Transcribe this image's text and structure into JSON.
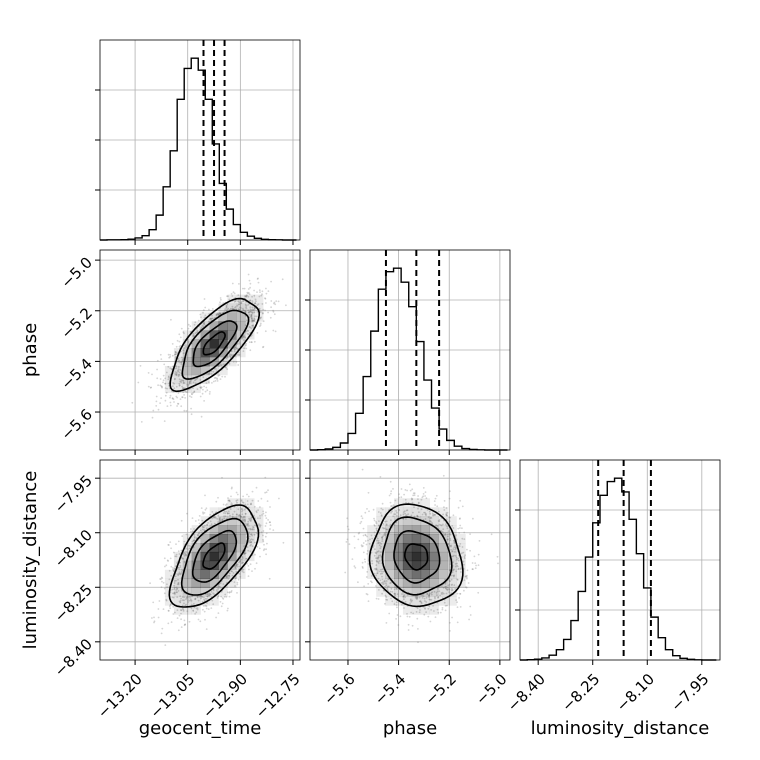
{
  "chart_data": {
    "type": "corner",
    "parameters": [
      "geocent_time",
      "phase",
      "luminosity_distance"
    ],
    "axis_labels": {
      "geocent_time": "geocent_time",
      "phase": "phase",
      "luminosity_distance": "luminosity_distance"
    },
    "ranges": {
      "geocent_time": [
        -13.3,
        -12.73
      ],
      "phase": [
        -5.75,
        -4.96
      ],
      "luminosity_distance": [
        -8.45,
        -7.9
      ]
    },
    "ticks": {
      "geocent_time": [
        -13.2,
        -13.05,
        -12.9,
        -12.75
      ],
      "phase": [
        -5.6,
        -5.4,
        -5.2,
        -5.0
      ],
      "luminosity_distance": [
        -8.4,
        -8.25,
        -8.1,
        -7.95
      ]
    },
    "tick_labels": {
      "geocent_time": [
        "−13.20",
        "−13.05",
        "−12.90",
        "−12.75"
      ],
      "phase": [
        "−5.6",
        "−5.4",
        "−5.2",
        "−5.0"
      ],
      "luminosity_distance": [
        "−8.40",
        "−8.25",
        "−8.10",
        "−7.95"
      ]
    },
    "quantiles": {
      "geocent_time": [
        -13.005,
        -12.975,
        -12.945
      ],
      "phase": [
        -5.45,
        -5.33,
        -5.24
      ],
      "luminosity_distance": [
        -8.235,
        -8.165,
        -8.09
      ]
    },
    "histograms": {
      "geocent_time": {
        "bin_edges": [
          -13.3,
          -13.28,
          -13.26,
          -13.24,
          -13.22,
          -13.2,
          -13.18,
          -13.16,
          -13.14,
          -13.12,
          -13.1,
          -13.08,
          -13.06,
          -13.04,
          -13.02,
          -13.0,
          -12.98,
          -12.96,
          -12.94,
          -12.92,
          -12.9,
          -12.88,
          -12.86,
          -12.84,
          -12.82,
          -12.8,
          -12.78,
          -12.76,
          -12.74
        ],
        "counts": [
          0,
          1,
          1,
          2,
          5,
          12,
          25,
          60,
          145,
          310,
          520,
          820,
          1000,
          1060,
          990,
          820,
          560,
          330,
          180,
          90,
          45,
          22,
          10,
          4,
          2,
          1,
          0,
          0
        ]
      },
      "phase": {
        "bin_edges": [
          -5.75,
          -5.72,
          -5.69,
          -5.66,
          -5.63,
          -5.6,
          -5.57,
          -5.54,
          -5.51,
          -5.48,
          -5.45,
          -5.42,
          -5.39,
          -5.36,
          -5.33,
          -5.3,
          -5.27,
          -5.24,
          -5.21,
          -5.18,
          -5.15,
          -5.12,
          -5.09,
          -5.06,
          -5.03,
          -5.0,
          -4.97
        ],
        "counts": [
          0,
          2,
          6,
          15,
          40,
          95,
          210,
          420,
          680,
          920,
          1020,
          1040,
          960,
          820,
          620,
          400,
          240,
          120,
          55,
          22,
          8,
          3,
          1,
          0,
          0,
          0
        ]
      },
      "luminosity_distance": {
        "bin_edges": [
          -8.45,
          -8.43,
          -8.41,
          -8.39,
          -8.37,
          -8.35,
          -8.33,
          -8.31,
          -8.29,
          -8.27,
          -8.25,
          -8.23,
          -8.21,
          -8.19,
          -8.17,
          -8.15,
          -8.13,
          -8.11,
          -8.09,
          -8.07,
          -8.05,
          -8.03,
          -8.01,
          -7.99,
          -7.97,
          -7.95,
          -7.93,
          -7.91
        ],
        "counts": [
          0,
          2,
          5,
          12,
          28,
          60,
          120,
          230,
          400,
          600,
          800,
          960,
          1040,
          1060,
          980,
          820,
          620,
          420,
          250,
          130,
          60,
          25,
          10,
          4,
          1,
          0,
          0
        ]
      }
    },
    "pairs": [
      {
        "x": "geocent_time",
        "y": "phase",
        "mean": [
          -12.975,
          -5.33
        ],
        "sd": [
          0.062,
          0.09
        ],
        "rho": 0.72
      },
      {
        "x": "geocent_time",
        "y": "luminosity_distance",
        "mean": [
          -12.975,
          -8.165
        ],
        "sd": [
          0.062,
          0.07
        ],
        "rho": 0.6
      },
      {
        "x": "phase",
        "y": "luminosity_distance",
        "mean": [
          -5.33,
          -8.165
        ],
        "sd": [
          0.09,
          0.07
        ],
        "rho": -0.1
      }
    ],
    "contour_levels_sigma": [
      0.5,
      1.0,
      1.5,
      2.0
    ],
    "grid": true,
    "colors": {
      "line": "#000000",
      "scatter": "#888888",
      "grid": "#b0b0b0",
      "density": "#000000"
    }
  }
}
